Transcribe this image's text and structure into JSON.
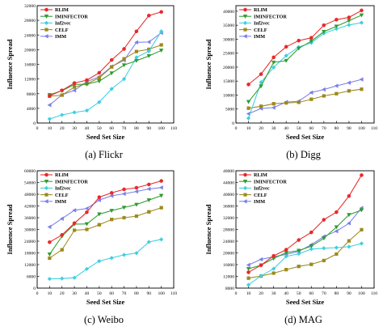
{
  "figure": {
    "panels_count": 4
  },
  "chart_data": [
    {
      "type": "line",
      "caption": "(a) Flickr",
      "xlabel": "Seed Set Size",
      "ylabel": "Influence Spread",
      "x": [
        10,
        20,
        30,
        40,
        50,
        60,
        70,
        80,
        90,
        100
      ],
      "xlim": [
        0,
        110
      ],
      "xticks": [
        "0",
        "10",
        "20",
        "30",
        "40",
        "50",
        "60",
        "70",
        "80",
        "90",
        "100",
        "110"
      ],
      "ylim": [
        0,
        32000
      ],
      "yticks": [
        "0",
        "4000",
        "8000",
        "12000",
        "16000",
        "20000",
        "24000",
        "28000",
        "32000"
      ],
      "legend_position": "top-left",
      "series": [
        {
          "name": "RLIM",
          "color": "#e8282b",
          "marker": "circle",
          "values": [
            7400,
            8900,
            10900,
            11700,
            13700,
            17200,
            20200,
            25000,
            29300,
            30300
          ]
        },
        {
          "name": "IMINFECTOR",
          "color": "#2e9b2e",
          "marker": "triangle-down",
          "values": [
            7700,
            8800,
            10500,
            10600,
            11400,
            13600,
            15800,
            17000,
            18300,
            19800
          ]
        },
        {
          "name": "Inf2vec",
          "color": "#3ecfe0",
          "marker": "diamond",
          "values": [
            1100,
            2200,
            2900,
            3400,
            5700,
            9300,
            12000,
            17900,
            19600,
            25000
          ]
        },
        {
          "name": "CELF",
          "color": "#9c8a1a",
          "marker": "square",
          "values": [
            7300,
            7600,
            9800,
            10700,
            12300,
            15300,
            17500,
            19500,
            20100,
            21300
          ]
        },
        {
          "name": "IMM",
          "color": "#7b7fe8",
          "marker": "triangle-left",
          "values": [
            4900,
            7700,
            8900,
            11300,
            12600,
            15400,
            17100,
            22000,
            22100,
            24600
          ]
        }
      ]
    },
    {
      "type": "line",
      "caption": "(b) Digg",
      "xlabel": "Seed Set Size",
      "ylabel": "Influence Spread",
      "x": [
        10,
        20,
        30,
        40,
        50,
        60,
        70,
        80,
        90,
        100
      ],
      "xlim": [
        0,
        110
      ],
      "xticks": [
        "0",
        "10",
        "20",
        "30",
        "40",
        "50",
        "60",
        "70",
        "80",
        "90",
        "100",
        "110"
      ],
      "ylim": [
        0,
        42000
      ],
      "yticks": [
        "0",
        "5000",
        "10000",
        "15000",
        "20000",
        "25000",
        "30000",
        "35000",
        "40000"
      ],
      "legend_position": "top-left",
      "series": [
        {
          "name": "RLIM",
          "color": "#e8282b",
          "marker": "circle",
          "values": [
            13800,
            17500,
            23500,
            27300,
            29500,
            30500,
            35000,
            37000,
            37800,
            40300
          ]
        },
        {
          "name": "IMINFECTOR",
          "color": "#2e9b2e",
          "marker": "triangle-down",
          "values": [
            7600,
            13200,
            21700,
            22300,
            26700,
            29300,
            32700,
            34600,
            36600,
            38600
          ]
        },
        {
          "name": "Inf2vec",
          "color": "#3ecfe0",
          "marker": "diamond",
          "values": [
            1700,
            14600,
            19900,
            24100,
            27200,
            28700,
            32100,
            33700,
            35100,
            35900
          ]
        },
        {
          "name": "CELF",
          "color": "#9c8a1a",
          "marker": "square",
          "values": [
            5300,
            6000,
            6900,
            7200,
            7400,
            8500,
            9700,
            10500,
            11500,
            12100
          ]
        },
        {
          "name": "IMM",
          "color": "#7b7fe8",
          "marker": "triangle-left",
          "values": [
            3300,
            5200,
            5500,
            7500,
            7800,
            10900,
            12000,
            13300,
            14400,
            15600
          ]
        }
      ]
    },
    {
      "type": "line",
      "caption": "(c) Weibo",
      "xlabel": "Seed Set Size",
      "ylabel": "Influence Spread",
      "x": [
        10,
        20,
        30,
        40,
        50,
        60,
        70,
        80,
        90,
        100
      ],
      "xlim": [
        0,
        110
      ],
      "xticks": [
        "0",
        "10",
        "20",
        "30",
        "40",
        "50",
        "60",
        "70",
        "80",
        "90",
        "100",
        "110"
      ],
      "ylim": [
        0,
        60000
      ],
      "yticks": [
        "0",
        "6000",
        "12000",
        "18000",
        "24000",
        "30000",
        "36000",
        "42000",
        "48000",
        "54000",
        "60000"
      ],
      "legend_position": "top-left",
      "series": [
        {
          "name": "RLIM",
          "color": "#e8282b",
          "marker": "circle",
          "values": [
            23500,
            27200,
            33200,
            38800,
            46500,
            48700,
            50500,
            51300,
            53000,
            54800
          ]
        },
        {
          "name": "IMINFECTOR",
          "color": "#2e9b2e",
          "marker": "triangle-down",
          "values": [
            17300,
            26500,
            32700,
            32800,
            37800,
            39600,
            41200,
            42700,
            45000,
            47300
          ]
        },
        {
          "name": "Inf2vec",
          "color": "#3ecfe0",
          "marker": "diamond",
          "values": [
            4700,
            4900,
            5300,
            9800,
            13800,
            15400,
            17000,
            17900,
            23600,
            24900
          ]
        },
        {
          "name": "CELF",
          "color": "#9c8a1a",
          "marker": "square",
          "values": [
            15300,
            19600,
            29600,
            30000,
            32400,
            35100,
            36000,
            36800,
            39000,
            41100
          ]
        },
        {
          "name": "IMM",
          "color": "#7b7fe8",
          "marker": "triangle-left",
          "values": [
            31300,
            35500,
            39800,
            40700,
            45000,
            47200,
            48200,
            49400,
            50700,
            51400
          ]
        }
      ]
    },
    {
      "type": "line",
      "caption": "(d) MAG",
      "xlabel": "Seed Set Size",
      "ylabel": "Influence Spread",
      "x": [
        10,
        20,
        30,
        40,
        50,
        60,
        70,
        80,
        90,
        100
      ],
      "xlim": [
        0,
        110
      ],
      "xticks": [
        "0",
        "10",
        "20",
        "30",
        "40",
        "50",
        "60",
        "70",
        "80",
        "90",
        "100",
        "110"
      ],
      "ylim": [
        8000,
        48000
      ],
      "yticks": [
        "8000",
        "12000",
        "16000",
        "20000",
        "24000",
        "28000",
        "32000",
        "36000",
        "40000",
        "44000",
        "48000"
      ],
      "legend_position": "top-left",
      "series": [
        {
          "name": "RLIM",
          "color": "#e8282b",
          "marker": "circle",
          "values": [
            13400,
            15800,
            19000,
            21100,
            24400,
            27000,
            31300,
            33900,
            39400,
            46500
          ]
        },
        {
          "name": "IMINFECTOR",
          "color": "#2e9b2e",
          "marker": "triangle-down",
          "values": [
            14600,
            15800,
            18100,
            20100,
            20800,
            22300,
            25000,
            28800,
            33000,
            34600
          ]
        },
        {
          "name": "Inf2vec",
          "color": "#3ecfe0",
          "marker": "diamond",
          "values": [
            9100,
            12200,
            14600,
            18800,
            19700,
            21300,
            21600,
            21800,
            22100,
            23200
          ]
        },
        {
          "name": "CELF",
          "color": "#9c8a1a",
          "marker": "square",
          "values": [
            11400,
            12100,
            13100,
            14300,
            15400,
            16100,
            17400,
            19600,
            24100,
            27900
          ]
        },
        {
          "name": "IMM",
          "color": "#7b7fe8",
          "marker": "triangle-left",
          "values": [
            15900,
            17800,
            18700,
            19500,
            20500,
            22800,
            25600,
            27400,
            30100,
            35300
          ]
        }
      ]
    }
  ]
}
